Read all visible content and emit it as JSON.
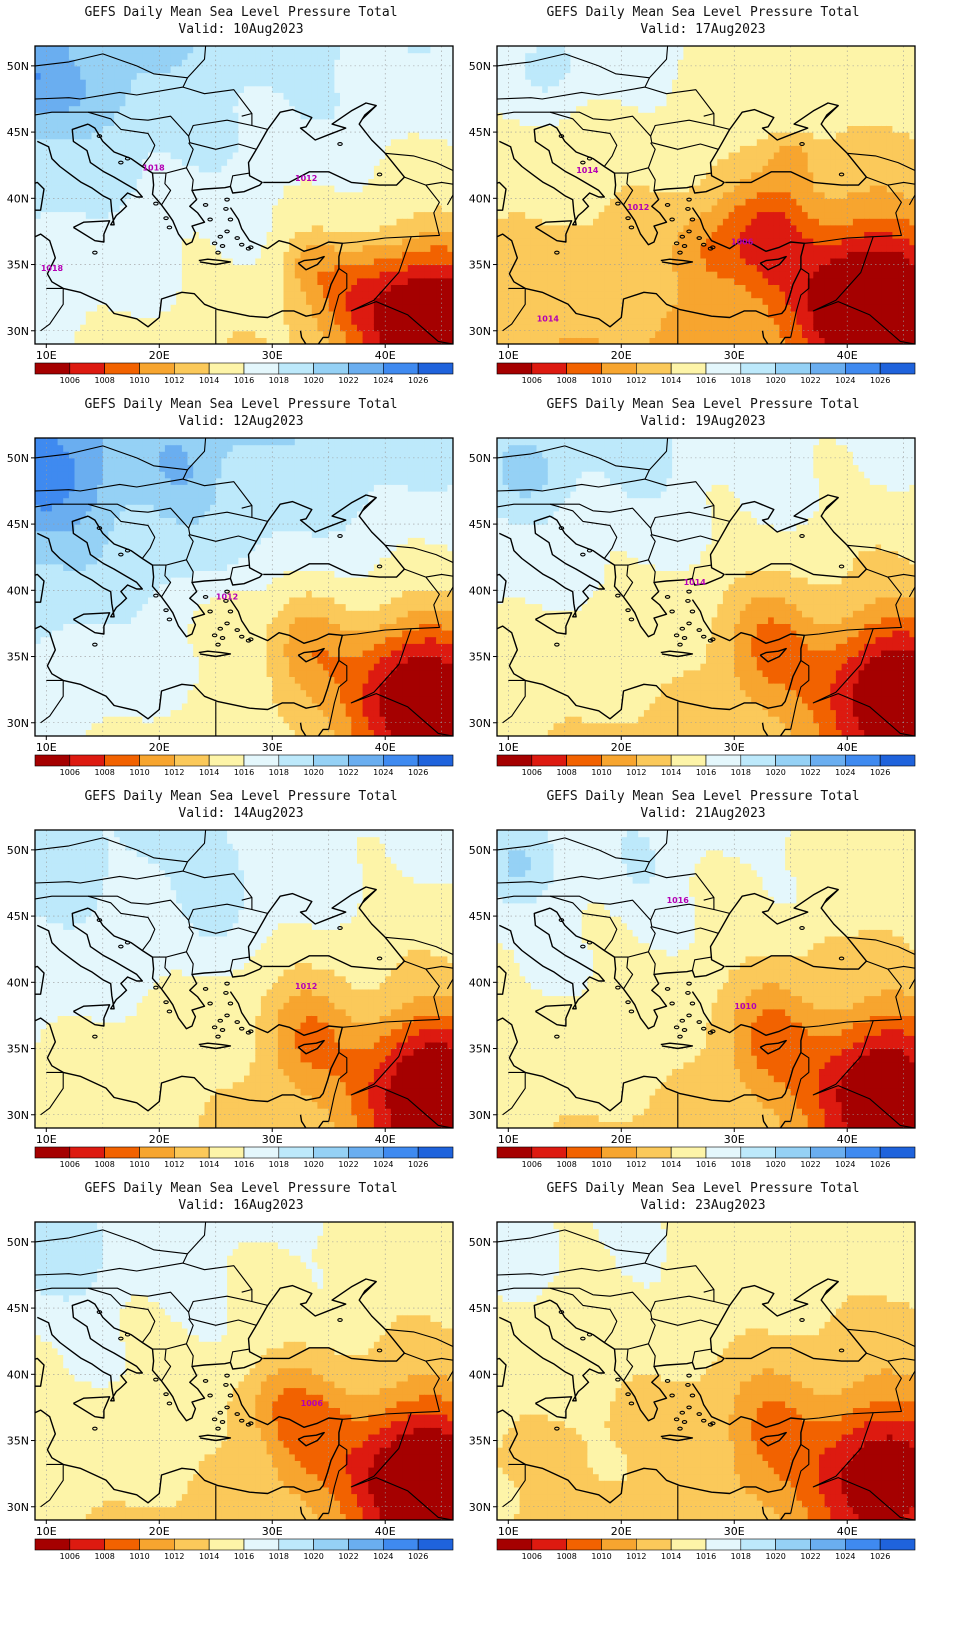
{
  "panels": [
    {
      "title": "GEFS Daily Mean Sea Level Pressure Total",
      "valid": "Valid: 10Aug2023",
      "contour_labels": [
        "1018",
        "1012",
        "1018"
      ]
    },
    {
      "title": "GEFS Daily Mean Sea Level Pressure Total",
      "valid": "Valid: 17Aug2023",
      "contour_labels": [
        "1014",
        "1012",
        "1006",
        "1014"
      ]
    },
    {
      "title": "GEFS Daily Mean Sea Level Pressure Total",
      "valid": "Valid: 12Aug2023",
      "contour_labels": [
        "1012"
      ]
    },
    {
      "title": "GEFS Daily Mean Sea Level Pressure Total",
      "valid": "Valid: 19Aug2023",
      "contour_labels": [
        "1014"
      ]
    },
    {
      "title": "GEFS Daily Mean Sea Level Pressure Total",
      "valid": "Valid: 14Aug2023",
      "contour_labels": [
        "1012"
      ]
    },
    {
      "title": "GEFS Daily Mean Sea Level Pressure Total",
      "valid": "Valid: 21Aug2023",
      "contour_labels": [
        "1016",
        "1010"
      ]
    },
    {
      "title": "GEFS Daily Mean Sea Level Pressure Total",
      "valid": "Valid: 16Aug2023",
      "contour_labels": [
        "1006"
      ]
    },
    {
      "title": "GEFS Daily Mean Sea Level Pressure Total",
      "valid": "Valid: 23Aug2023",
      "contour_labels": []
    }
  ],
  "axes": {
    "lat_labels": [
      "50N",
      "45N",
      "40N",
      "35N",
      "30N"
    ],
    "lon_labels": [
      "10E",
      "20E",
      "30E",
      "40E"
    ]
  },
  "colorbar": {
    "labels": [
      "1006",
      "1008",
      "1010",
      "1012",
      "1014",
      "1016",
      "1018",
      "1020",
      "1022",
      "1024",
      "1026"
    ],
    "colors": [
      "#a50000",
      "#dd1a10",
      "#f26200",
      "#f7a52f",
      "#fbc95a",
      "#fdf4a8",
      "#e4f7fc",
      "#bde9fb",
      "#95d1f5",
      "#6aaef0",
      "#3f8af0",
      "#1f63dc"
    ]
  }
}
